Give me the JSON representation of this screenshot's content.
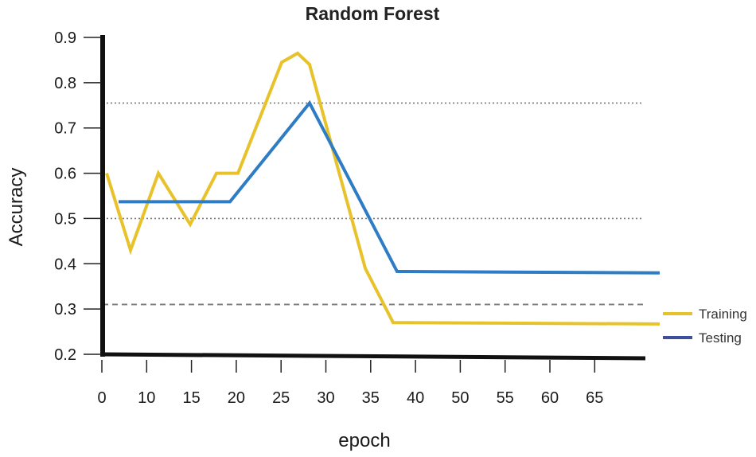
{
  "chart_data": {
    "type": "line",
    "title": "Random Forest",
    "xlabel": "epoch",
    "ylabel": "Accuracy",
    "xlim": [
      0,
      70
    ],
    "ylim": [
      0.2,
      0.9
    ],
    "x_tick_labels": [
      "0",
      "10",
      "15",
      "20",
      "25",
      "30",
      "35",
      "40",
      "50",
      "55",
      "60",
      "65"
    ],
    "y_tick_labels": [
      "0.9",
      "0.8",
      "0.7",
      "0.6",
      "0.5",
      "0.4",
      "0.3",
      "0.2"
    ],
    "y_tick_values": [
      0.9,
      0.8,
      0.7,
      0.6,
      0.5,
      0.4,
      0.3,
      0.2
    ],
    "grid": false,
    "legend_position": "bottom-right",
    "reference_lines": [
      {
        "y": 0.755,
        "style": "dotted"
      },
      {
        "y": 0.5,
        "style": "dotted"
      },
      {
        "y": 0.31,
        "style": "dashed"
      }
    ],
    "series": [
      {
        "name": "Training",
        "color": "#e8c22a",
        "x": [
          0.5,
          3.5,
          7,
          11,
          14.3,
          17,
          22.5,
          24.5,
          26,
          33,
          36.5,
          70
        ],
        "y": [
          0.6,
          0.43,
          0.6,
          0.487,
          0.6,
          0.6,
          0.845,
          0.865,
          0.84,
          0.39,
          0.27,
          0.267
        ]
      },
      {
        "name": "Testing",
        "color": "#2e7cc4",
        "legend_color": "#3f4fa0",
        "x": [
          2,
          16,
          26,
          37,
          70
        ],
        "y": [
          0.537,
          0.537,
          0.755,
          0.383,
          0.38
        ]
      }
    ]
  }
}
